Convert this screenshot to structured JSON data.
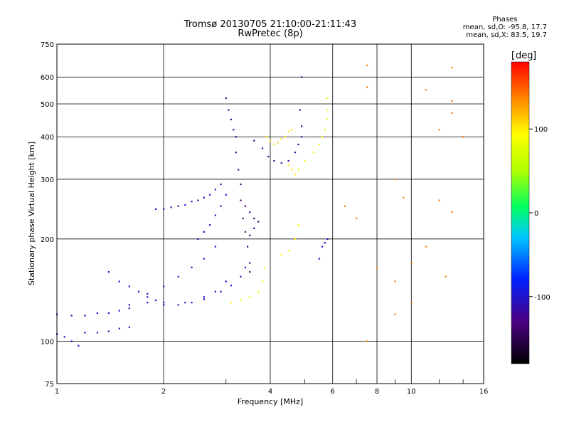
{
  "title": {
    "line1": "Tromsø 20130705 21:10:00-21:11:43",
    "line2": "RwPretec (8p)"
  },
  "phases_box": {
    "heading": "Phases",
    "line1": "mean, sd,O: -95.8, 17.7",
    "line2": "mean, sd,X:  83.5, 19.7"
  },
  "colorbar": {
    "label": "deg",
    "ticks": [
      "100",
      "0",
      "-100"
    ],
    "tick_values": [
      100,
      0,
      -100
    ],
    "range": [
      -180,
      180
    ]
  },
  "chart_data": {
    "type": "scatter",
    "title": "Tromsø 20130705 21:10:00-21:11:43",
    "subtitle": "RwPretec (8p)",
    "xlabel": "Frequency [MHz]",
    "ylabel": "Stationary phase Virtual Height [km]",
    "xscale": "log",
    "yscale": "log",
    "xlim": [
      1,
      16
    ],
    "ylim": [
      75,
      750
    ],
    "xticks": [
      "1",
      "2",
      "4",
      "6",
      "8",
      "10",
      "16"
    ],
    "xtick_values": [
      1,
      2,
      4,
      6,
      8,
      10,
      16
    ],
    "yticks": [
      "75",
      "100",
      "200",
      "300",
      "400",
      "500",
      "600",
      "750"
    ],
    "ytick_values": [
      75,
      100,
      200,
      300,
      400,
      500,
      600,
      750
    ],
    "grid": true,
    "color_encodes": "phase [deg]",
    "series": [
      {
        "phase": -100,
        "points": [
          [
            1.0,
            120
          ],
          [
            1.1,
            119
          ],
          [
            1.2,
            119
          ],
          [
            1.3,
            121
          ],
          [
            1.4,
            121
          ],
          [
            1.5,
            123
          ],
          [
            1.6,
            125
          ],
          [
            1.8,
            130
          ],
          [
            2.0,
            128
          ],
          [
            2.3,
            130
          ],
          [
            2.6,
            133
          ],
          [
            2.9,
            140
          ],
          [
            3.1,
            146
          ],
          [
            3.3,
            155
          ],
          [
            3.4,
            165
          ]
        ]
      },
      {
        "phase": -100,
        "points": [
          [
            1.0,
            105
          ],
          [
            1.05,
            103
          ],
          [
            1.1,
            100
          ],
          [
            1.15,
            97
          ],
          [
            1.2,
            106
          ],
          [
            1.3,
            106
          ],
          [
            1.4,
            107
          ],
          [
            1.5,
            109
          ],
          [
            1.6,
            110
          ]
        ]
      },
      {
        "phase": -100,
        "points": [
          [
            1.6,
            128
          ],
          [
            1.8,
            138
          ],
          [
            2.0,
            145
          ],
          [
            2.2,
            155
          ],
          [
            2.4,
            165
          ],
          [
            2.6,
            175
          ],
          [
            2.8,
            190
          ]
        ]
      },
      {
        "phase": -100,
        "points": [
          [
            1.4,
            160
          ],
          [
            1.5,
            150
          ],
          [
            1.6,
            145
          ],
          [
            1.7,
            140
          ],
          [
            1.8,
            135
          ],
          [
            1.9,
            132
          ],
          [
            2.0,
            130
          ],
          [
            2.2,
            128
          ],
          [
            2.4,
            130
          ],
          [
            2.6,
            135
          ],
          [
            2.8,
            140
          ],
          [
            3.0,
            150
          ]
        ]
      },
      {
        "phase": -100,
        "points": [
          [
            1.9,
            245
          ],
          [
            2.0,
            245
          ],
          [
            2.1,
            248
          ],
          [
            2.2,
            250
          ],
          [
            2.3,
            252
          ],
          [
            2.4,
            258
          ],
          [
            2.5,
            260
          ],
          [
            2.6,
            265
          ],
          [
            2.7,
            270
          ],
          [
            2.8,
            280
          ],
          [
            2.9,
            290
          ]
        ]
      },
      {
        "phase": -120,
        "points": [
          [
            3.6,
            390
          ],
          [
            3.8,
            370
          ],
          [
            3.95,
            350
          ],
          [
            4.1,
            340
          ],
          [
            4.3,
            335
          ],
          [
            4.5,
            340
          ],
          [
            4.7,
            360
          ],
          [
            4.8,
            380
          ],
          [
            4.9,
            400
          ],
          [
            4.9,
            430
          ],
          [
            4.85,
            480
          ],
          [
            4.9,
            600
          ]
        ]
      },
      {
        "phase": -135,
        "points": [
          [
            3.0,
            520
          ],
          [
            3.05,
            480
          ],
          [
            3.1,
            450
          ],
          [
            3.15,
            420
          ],
          [
            3.2,
            400
          ],
          [
            3.2,
            360
          ],
          [
            3.25,
            320
          ],
          [
            3.3,
            290
          ],
          [
            3.3,
            260
          ],
          [
            3.35,
            230
          ],
          [
            3.4,
            210
          ],
          [
            3.45,
            190
          ],
          [
            3.5,
            170
          ],
          [
            3.5,
            160
          ]
        ]
      },
      {
        "phase": -140,
        "points": [
          [
            3.4,
            250
          ],
          [
            3.5,
            240
          ],
          [
            3.6,
            230
          ],
          [
            3.7,
            225
          ],
          [
            3.6,
            215
          ],
          [
            3.5,
            205
          ]
        ]
      },
      {
        "phase": -100,
        "points": [
          [
            2.5,
            200
          ],
          [
            2.6,
            210
          ],
          [
            2.7,
            220
          ],
          [
            2.8,
            235
          ],
          [
            2.9,
            250
          ],
          [
            3.0,
            270
          ]
        ]
      },
      {
        "phase": 100,
        "points": [
          [
            3.1,
            130
          ],
          [
            3.3,
            132
          ],
          [
            3.5,
            135
          ],
          [
            3.7,
            140
          ],
          [
            3.8,
            150
          ],
          [
            3.85,
            165
          ]
        ]
      },
      {
        "phase": 100,
        "points": [
          [
            4.5,
            330
          ],
          [
            4.6,
            320
          ],
          [
            4.7,
            310
          ],
          [
            4.8,
            320
          ],
          [
            5.0,
            340
          ],
          [
            5.3,
            360
          ],
          [
            5.5,
            380
          ],
          [
            5.6,
            400
          ],
          [
            5.7,
            420
          ],
          [
            5.8,
            450
          ],
          [
            5.8,
            480
          ],
          [
            5.8,
            520
          ]
        ]
      },
      {
        "phase": 105,
        "points": [
          [
            3.9,
            400
          ],
          [
            4.0,
            390
          ],
          [
            4.1,
            380
          ],
          [
            4.2,
            385
          ],
          [
            4.3,
            395
          ],
          [
            4.4,
            400
          ],
          [
            4.5,
            415
          ],
          [
            4.6,
            420
          ]
        ]
      },
      {
        "phase": 100,
        "points": [
          [
            4.3,
            180
          ],
          [
            4.5,
            185
          ],
          [
            4.7,
            200
          ],
          [
            4.8,
            220
          ]
        ]
      },
      {
        "phase": -100,
        "points": [
          [
            5.5,
            175
          ],
          [
            5.6,
            190
          ],
          [
            5.7,
            195
          ],
          [
            5.8,
            200
          ]
        ]
      },
      {
        "phase": 140,
        "points": [
          [
            7.5,
            650
          ],
          [
            7.5,
            560
          ],
          [
            9.0,
            300
          ],
          [
            9.5,
            265
          ],
          [
            11.0,
            550
          ],
          [
            12.0,
            420
          ],
          [
            13.0,
            640
          ],
          [
            13.0,
            510
          ],
          [
            13.0,
            470
          ],
          [
            14.0,
            400
          ],
          [
            12.0,
            260
          ],
          [
            13.0,
            240
          ],
          [
            11.0,
            190
          ],
          [
            10.0,
            170
          ],
          [
            9.0,
            150
          ],
          [
            8.0,
            165
          ],
          [
            12.5,
            155
          ],
          [
            10.0,
            130
          ],
          [
            9.0,
            120
          ],
          [
            7.0,
            230
          ],
          [
            6.5,
            250
          ],
          [
            7.5,
            100
          ]
        ]
      }
    ]
  }
}
